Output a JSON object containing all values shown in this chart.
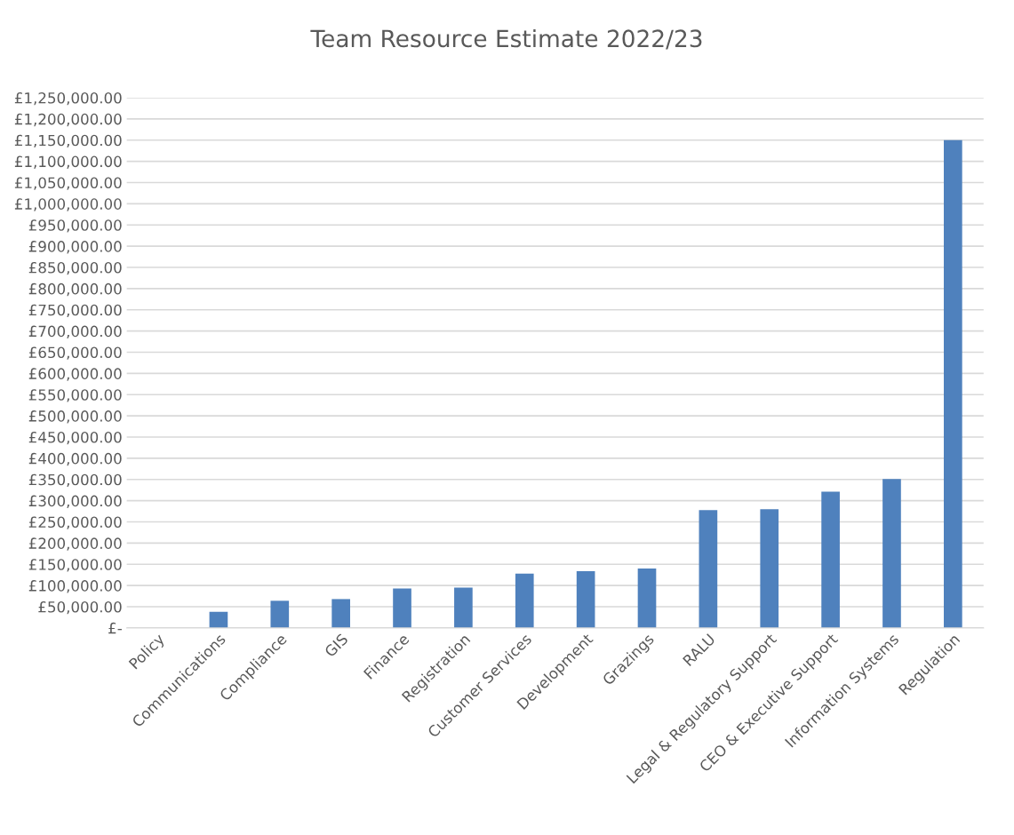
{
  "chart_data": {
    "type": "bar",
    "title": "Team Resource Estimate 2022/23",
    "categories": [
      "Policy",
      "Communications",
      "Compliance",
      "GIS",
      "Finance",
      "Registration",
      "Customer Services",
      "Development",
      "Grazings",
      "RALU",
      "Legal & Regulatory Support",
      "CEO & Executive Support",
      "Information Systems",
      "Regulation"
    ],
    "values": [
      0,
      38000,
      64000,
      68000,
      93000,
      95000,
      128000,
      134000,
      140000,
      278000,
      280000,
      321000,
      351000,
      1150000
    ],
    "color": "#4f81bd",
    "ylim": [
      0,
      1250000
    ],
    "yticks": [
      {
        "value": 0,
        "label": "£-"
      },
      {
        "value": 50000,
        "label": "£50,000.00"
      },
      {
        "value": 100000,
        "label": "£100,000.00"
      },
      {
        "value": 150000,
        "label": "£150,000.00"
      },
      {
        "value": 200000,
        "label": "£200,000.00"
      },
      {
        "value": 250000,
        "label": "£250,000.00"
      },
      {
        "value": 300000,
        "label": "£300,000.00"
      },
      {
        "value": 350000,
        "label": "£350,000.00"
      },
      {
        "value": 400000,
        "label": "£400,000.00"
      },
      {
        "value": 450000,
        "label": "£450,000.00"
      },
      {
        "value": 500000,
        "label": "£500,000.00"
      },
      {
        "value": 550000,
        "label": "£550,000.00"
      },
      {
        "value": 600000,
        "label": "£600,000.00"
      },
      {
        "value": 650000,
        "label": "£650,000.00"
      },
      {
        "value": 700000,
        "label": "£700,000.00"
      },
      {
        "value": 750000,
        "label": "£750,000.00"
      },
      {
        "value": 800000,
        "label": "£800,000.00"
      },
      {
        "value": 850000,
        "label": "£850,000.00"
      },
      {
        "value": 900000,
        "label": "£900,000.00"
      },
      {
        "value": 950000,
        "label": "£950,000.00"
      },
      {
        "value": 1000000,
        "label": "£1,000,000.00"
      },
      {
        "value": 1050000,
        "label": "£1,050,000.00"
      },
      {
        "value": 1100000,
        "label": "£1,100,000.00"
      },
      {
        "value": 1150000,
        "label": "£1,150,000.00"
      },
      {
        "value": 1200000,
        "label": "£1,200,000.00"
      },
      {
        "value": 1250000,
        "label": "£1,250,000.00"
      }
    ],
    "grid": "y"
  }
}
